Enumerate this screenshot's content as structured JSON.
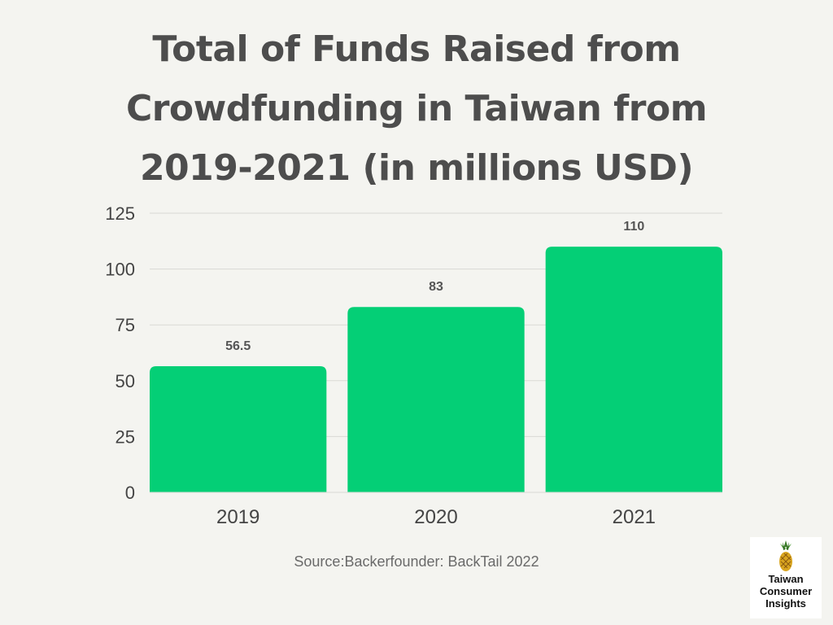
{
  "page": {
    "title_lines": [
      "Total of Funds Raised from",
      "Crowdfunding in Taiwan from",
      "2019-2021 (in millions USD)"
    ],
    "source": "Source:Backerfounder: BackTail 2022"
  },
  "logo": {
    "lines": [
      "Taiwan",
      "Consumer",
      "Insights"
    ],
    "icon": "pineapple-icon"
  },
  "chart_data": {
    "type": "bar",
    "title": "Total of Funds Raised from Crowdfunding in Taiwan from 2019-2021 (in millions USD)",
    "categories": [
      "2019",
      "2020",
      "2021"
    ],
    "values": [
      56.5,
      83,
      110
    ],
    "data_labels": [
      "56.5",
      "83",
      "110"
    ],
    "ylim": [
      0,
      125
    ],
    "yticks": [
      0,
      25,
      50,
      75,
      100,
      125
    ],
    "grid": true,
    "bar_color": "#04cf76",
    "grid_color": "#d9d9d4",
    "text_color": "#444444"
  }
}
